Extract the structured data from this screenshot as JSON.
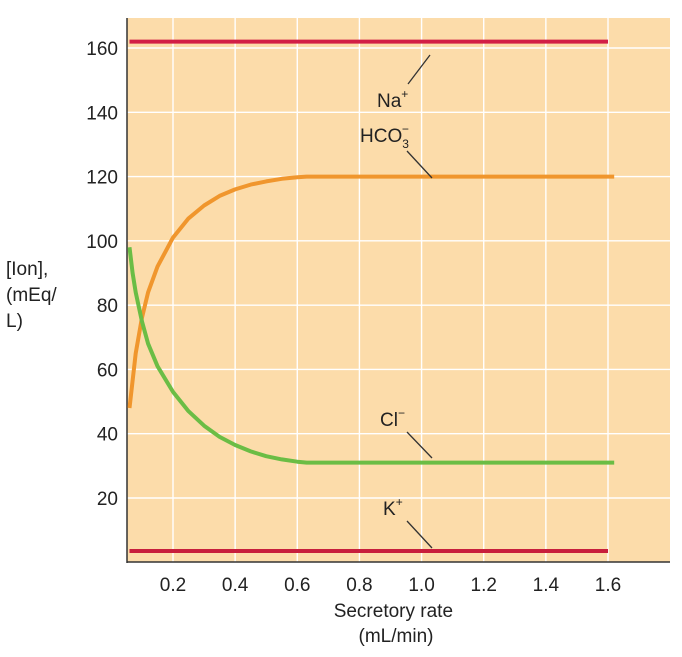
{
  "chart_data": {
    "type": "line",
    "xlabel_lines": [
      "Secretory rate",
      "(mL/min)"
    ],
    "ylabel_lines": [
      "[Ion],",
      "(mEq/",
      "L)"
    ],
    "xlim": [
      0.06,
      1.76
    ],
    "ylim": [
      0,
      170
    ],
    "x_ticks": [
      0.2,
      0.4,
      0.6,
      0.8,
      1.0,
      1.2,
      1.4,
      1.6
    ],
    "x_tick_labels": [
      "0.2",
      "0.4",
      "0.6",
      "0.8",
      "1.0",
      "1.2",
      "1.4",
      "1.6"
    ],
    "y_ticks": [
      20,
      40,
      60,
      80,
      100,
      120,
      140,
      160
    ],
    "y_tick_labels": [
      "20",
      "40",
      "60",
      "80",
      "100",
      "120",
      "140",
      "160"
    ],
    "grid": true,
    "background_color": "#fcdcaa",
    "grid_color": "#ffffff",
    "series": [
      {
        "name": "Na+",
        "label": {
          "base": "Na",
          "sup": "+"
        },
        "color": "#d21f46",
        "x": [
          0.06,
          1.6
        ],
        "y": [
          162,
          162
        ]
      },
      {
        "name": "HCO3−",
        "label": {
          "base": "HCO",
          "sub": "3",
          "sup": "−"
        },
        "color": "#f0962d",
        "x": [
          0.06,
          0.08,
          0.1,
          0.12,
          0.15,
          0.2,
          0.25,
          0.3,
          0.35,
          0.4,
          0.45,
          0.5,
          0.55,
          0.6,
          0.63,
          1.62
        ],
        "y": [
          48,
          65,
          76,
          84,
          92,
          101,
          107,
          111,
          114,
          116,
          117.5,
          118.5,
          119.3,
          119.8,
          120,
          120
        ]
      },
      {
        "name": "Cl−",
        "label": {
          "base": "Cl",
          "sup": "−"
        },
        "color": "#6bbd45",
        "x": [
          0.06,
          0.07,
          0.08,
          0.1,
          0.12,
          0.15,
          0.2,
          0.25,
          0.3,
          0.35,
          0.4,
          0.45,
          0.5,
          0.55,
          0.6,
          0.63,
          1.62
        ],
        "y": [
          98,
          90,
          84,
          75,
          68,
          61,
          53,
          47,
          42.5,
          39,
          36.5,
          34.5,
          33,
          32,
          31.3,
          31,
          31
        ]
      },
      {
        "name": "K+",
        "label": {
          "base": "K",
          "sup": "+"
        },
        "color": "#c81e3c",
        "x": [
          0.06,
          1.6
        ],
        "y": [
          3.5,
          3.5
        ]
      }
    ]
  }
}
